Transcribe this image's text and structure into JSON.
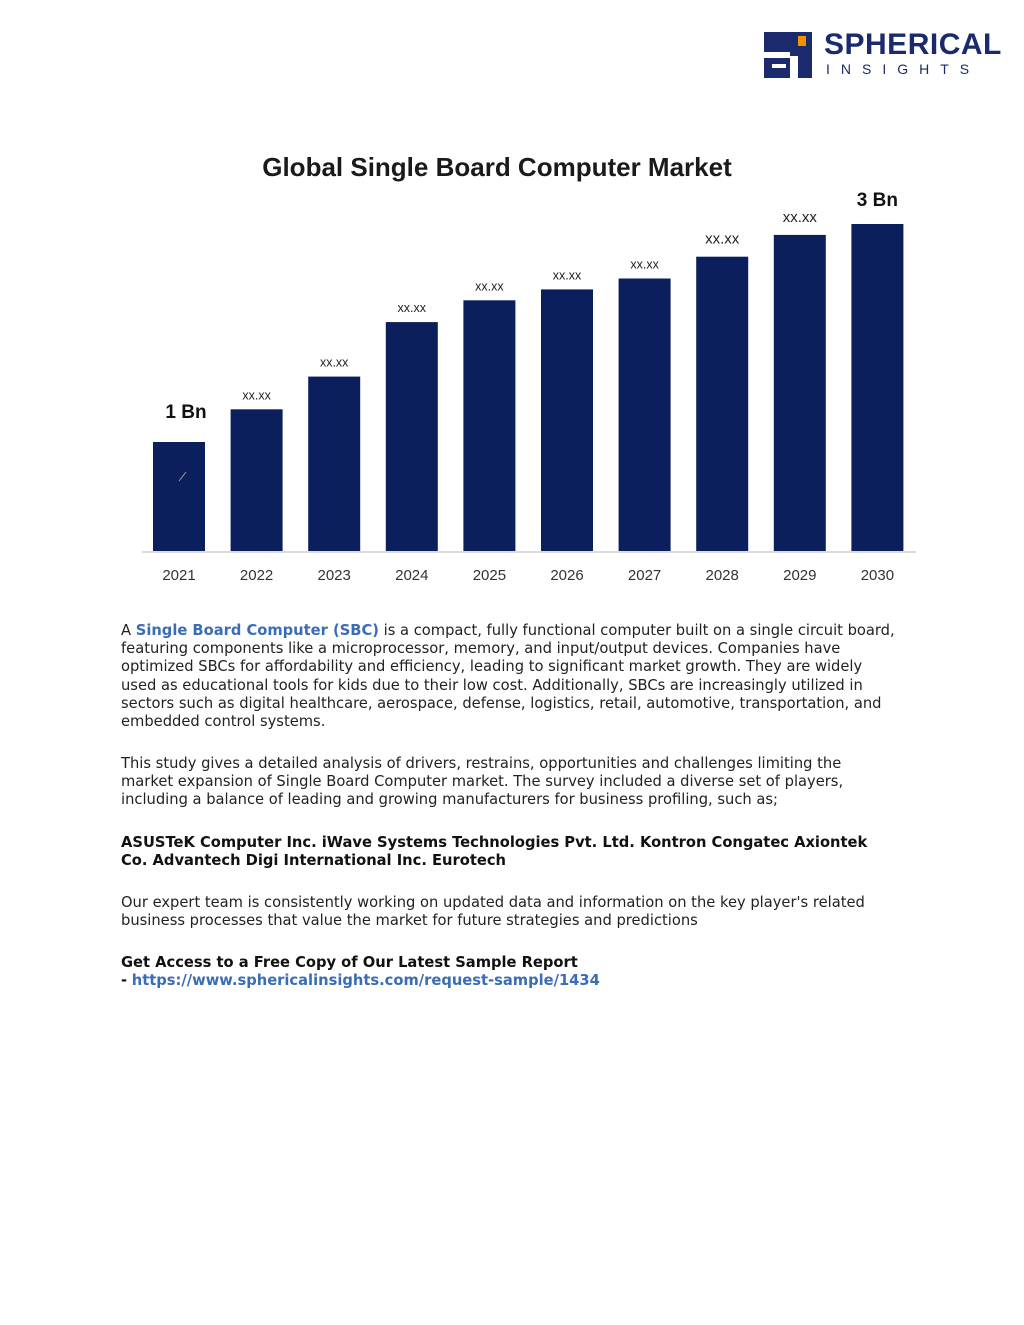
{
  "logo": {
    "name": "SPHERICAL",
    "tagline": "INSIGHTS",
    "colors": {
      "navy": "#1a2a6c",
      "orange": "#f39200"
    }
  },
  "chart_data": {
    "type": "bar",
    "title": "Global Single Board Computer Market",
    "categories": [
      "2021",
      "2022",
      "2023",
      "2024",
      "2025",
      "2026",
      "2027",
      "2028",
      "2029",
      "2030"
    ],
    "values": [
      1.0,
      1.3,
      1.6,
      2.1,
      2.3,
      2.4,
      2.5,
      2.7,
      2.9,
      3.0
    ],
    "data_labels": [
      "1 Bn",
      "xx.xx",
      "xx.xx",
      "xx.xx",
      "xx.xx",
      "xx.xx",
      "xx.xx",
      "xx.xx",
      "xx.xx",
      "3 Bn"
    ],
    "ylim": [
      0,
      3.0
    ],
    "bar_color": "#0b1f5c",
    "grid": false,
    "legend": "none"
  },
  "content": {
    "p1_prefix": "A",
    "p1_link": "Single Board Computer (SBC)",
    "p1_rest": "is a compact, fully functional computer built on a single circuit board, featuring components like a microprocessor, memory, and input/output devices. Companies have optimized SBCs for affordability and efficiency, leading to significant market growth. They are widely used as educational tools for kids due to their low cost. Additionally, SBCs are increasingly utilized in sectors such as digital healthcare, aerospace, defense, logistics, retail, automotive, transportation, and embedded control systems.",
    "p2": "This study gives a detailed analysis of drivers, restrains, opportunities and challenges limiting the market expansion of Single Board Computer market. The survey included a diverse set of players, including a balance of leading and growing manufacturers for business profiling, such as;",
    "companies": "ASUSTeK Computer Inc. iWave Systems Technologies Pvt. Ltd. Kontron Congatec Axiontek Co. Advantech Digi International Inc. Eurotech",
    "p3": "Our expert team is consistently working on updated data and information on the key player's related business processes that value the market for future strategies and predictions",
    "cta_title": "Get Access to a Free Copy of Our Latest Sample Report",
    "cta_dash": "-",
    "cta_url": "https://www.sphericalinsights.com/request-sample/1434"
  }
}
